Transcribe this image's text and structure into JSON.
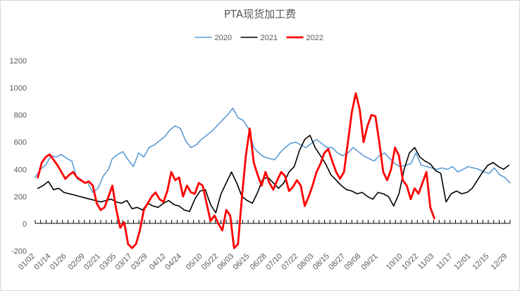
{
  "chart_data": {
    "type": "line",
    "title": "PTA现货加工费",
    "xlabel": "",
    "ylabel": "",
    "ylim": [
      -200,
      1200
    ],
    "y_ticks": [
      -200,
      0,
      200,
      400,
      600,
      800,
      1000,
      1200
    ],
    "grid": false,
    "legend_position": "top",
    "x_domain": [
      "01/02",
      "12/31"
    ],
    "x_ticks": [
      "01/02",
      "01/14",
      "01/26",
      "02/09",
      "02/21",
      "03/05",
      "03/17",
      "03/29",
      "04/12",
      "04/24",
      "05/10",
      "05/22",
      "06/03",
      "06/15",
      "06/28",
      "07/10",
      "07/22",
      "08/03",
      "08/15",
      "08/27",
      "09/08",
      "09/21",
      "10/10",
      "10/22",
      "11/03",
      "11/17",
      "12/01",
      "12/15",
      "12/29"
    ],
    "series": [
      {
        "name": "2020",
        "color": "#5b9bd5",
        "stroke_width": 1.6,
        "x": [
          "01/02",
          "01/06",
          "01/10",
          "01/14",
          "01/18",
          "01/22",
          "01/26",
          "01/30",
          "02/03",
          "02/07",
          "02/11",
          "02/15",
          "02/19",
          "02/23",
          "02/27",
          "03/02",
          "03/06",
          "03/10",
          "03/14",
          "03/18",
          "03/22",
          "03/26",
          "03/30",
          "04/03",
          "04/07",
          "04/11",
          "04/15",
          "04/19",
          "04/23",
          "04/27",
          "05/01",
          "05/05",
          "05/09",
          "05/13",
          "05/17",
          "05/21",
          "05/25",
          "05/29",
          "06/02",
          "06/06",
          "06/10",
          "06/14",
          "06/18",
          "06/22",
          "06/26",
          "06/30",
          "07/04",
          "07/08",
          "07/12",
          "07/16",
          "07/20",
          "07/24",
          "07/28",
          "08/01",
          "08/05",
          "08/09",
          "08/13",
          "08/17",
          "08/21",
          "08/25",
          "08/29",
          "09/02",
          "09/06",
          "09/10",
          "09/14",
          "09/18",
          "09/22",
          "09/26",
          "09/30",
          "10/04",
          "10/08",
          "10/12",
          "10/16",
          "10/20",
          "10/24",
          "10/28",
          "11/01",
          "11/05",
          "11/09",
          "11/13",
          "11/17",
          "11/21",
          "11/25",
          "11/29",
          "12/03",
          "12/07",
          "12/11",
          "12/15",
          "12/19",
          "12/23",
          "12/27",
          "12/31"
        ],
        "values": [
          340,
          400,
          430,
          500,
          490,
          510,
          480,
          460,
          330,
          310,
          300,
          230,
          260,
          350,
          400,
          480,
          510,
          530,
          470,
          420,
          520,
          490,
          560,
          580,
          610,
          640,
          690,
          720,
          700,
          610,
          560,
          580,
          620,
          650,
          680,
          720,
          760,
          800,
          850,
          780,
          760,
          700,
          560,
          520,
          490,
          480,
          470,
          520,
          560,
          590,
          600,
          580,
          560,
          590,
          620,
          590,
          560,
          560,
          520,
          500,
          520,
          560,
          530,
          500,
          480,
          460,
          500,
          520,
          480,
          440,
          420,
          430,
          440,
          520,
          430,
          420,
          410,
          400,
          410,
          400,
          420,
          380,
          400,
          420,
          410,
          400,
          380,
          370,
          410,
          360,
          340,
          300
        ]
      },
      {
        "name": "2021",
        "color": "#000000",
        "stroke_width": 1.6,
        "x": [
          "01/04",
          "01/08",
          "01/12",
          "01/16",
          "01/20",
          "01/24",
          "01/28",
          "02/01",
          "02/05",
          "02/09",
          "02/13",
          "02/17",
          "02/21",
          "02/25",
          "03/01",
          "03/05",
          "03/09",
          "03/13",
          "03/17",
          "03/21",
          "03/25",
          "03/29",
          "04/02",
          "04/06",
          "04/10",
          "04/14",
          "04/18",
          "04/22",
          "04/26",
          "04/30",
          "05/04",
          "05/08",
          "05/12",
          "05/16",
          "05/20",
          "05/24",
          "05/28",
          "06/01",
          "06/05",
          "06/09",
          "06/13",
          "06/17",
          "06/21",
          "06/25",
          "06/29",
          "07/03",
          "07/07",
          "07/11",
          "07/15",
          "07/19",
          "07/23",
          "07/27",
          "07/31",
          "08/04",
          "08/08",
          "08/12",
          "08/16",
          "08/20",
          "08/24",
          "08/28",
          "09/01",
          "09/05",
          "09/09",
          "09/13",
          "09/17",
          "09/21",
          "09/25",
          "09/29",
          "10/03",
          "10/07",
          "10/11",
          "10/15",
          "10/19",
          "10/23",
          "10/27",
          "10/31",
          "11/04",
          "11/08",
          "11/12",
          "11/16",
          "11/20",
          "11/24",
          "11/28",
          "12/02",
          "12/06",
          "12/10",
          "12/14",
          "12/18",
          "12/22",
          "12/26",
          "12/30"
        ],
        "values": [
          260,
          280,
          310,
          250,
          260,
          230,
          220,
          210,
          200,
          190,
          180,
          170,
          160,
          170,
          180,
          160,
          150,
          170,
          110,
          120,
          100,
          150,
          130,
          120,
          150,
          170,
          140,
          130,
          100,
          90,
          180,
          240,
          250,
          140,
          80,
          220,
          300,
          380,
          300,
          200,
          170,
          150,
          230,
          330,
          340,
          300,
          260,
          300,
          380,
          420,
          540,
          620,
          650,
          560,
          500,
          440,
          360,
          320,
          280,
          250,
          240,
          220,
          230,
          200,
          180,
          230,
          220,
          200,
          130,
          220,
          400,
          520,
          560,
          490,
          460,
          440,
          390,
          370,
          160,
          220,
          240,
          220,
          230,
          260,
          320,
          380,
          430,
          450,
          420,
          400,
          430
        ]
      },
      {
        "name": "2022",
        "color": "#ff0000",
        "stroke_width": 2.8,
        "x": [
          "01/04",
          "01/07",
          "01/10",
          "01/13",
          "01/16",
          "01/19",
          "01/22",
          "01/25",
          "01/28",
          "01/31",
          "02/03",
          "02/06",
          "02/09",
          "02/12",
          "02/15",
          "02/18",
          "02/21",
          "02/24",
          "02/27",
          "03/02",
          "03/05",
          "03/08",
          "03/11",
          "03/14",
          "03/17",
          "03/20",
          "03/23",
          "03/26",
          "03/29",
          "04/01",
          "04/04",
          "04/07",
          "04/10",
          "04/13",
          "04/16",
          "04/19",
          "04/22",
          "04/25",
          "04/28",
          "05/01",
          "05/04",
          "05/07",
          "05/10",
          "05/13",
          "05/16",
          "05/19",
          "05/22",
          "05/25",
          "05/28",
          "05/31",
          "06/03",
          "06/06",
          "06/09",
          "06/12",
          "06/15",
          "06/18",
          "06/21",
          "06/24",
          "06/27",
          "06/30",
          "07/03",
          "07/06",
          "07/09",
          "07/12",
          "07/15",
          "07/18",
          "07/21",
          "07/24",
          "07/27",
          "07/30",
          "08/02",
          "08/05",
          "08/08",
          "08/11",
          "08/14",
          "08/17",
          "08/20",
          "08/23",
          "08/26",
          "08/29",
          "09/01",
          "09/04",
          "09/07",
          "09/10",
          "09/13",
          "09/16",
          "09/19",
          "09/22",
          "09/25",
          "09/28",
          "10/01",
          "10/04",
          "10/07",
          "10/10",
          "10/13",
          "10/16",
          "10/19",
          "10/22",
          "10/25",
          "10/28",
          "10/31",
          "11/03"
        ],
        "values": [
          340,
          450,
          490,
          510,
          470,
          430,
          380,
          330,
          360,
          380,
          340,
          320,
          300,
          310,
          280,
          150,
          100,
          120,
          200,
          280,
          100,
          -30,
          10,
          -150,
          -180,
          -150,
          -50,
          100,
          150,
          200,
          230,
          180,
          160,
          240,
          380,
          320,
          340,
          200,
          280,
          230,
          220,
          300,
          280,
          150,
          20,
          60,
          0,
          -50,
          100,
          60,
          -180,
          -150,
          200,
          500,
          700,
          450,
          360,
          280,
          380,
          300,
          250,
          320,
          380,
          350,
          240,
          270,
          320,
          280,
          130,
          200,
          280,
          380,
          440,
          520,
          550,
          460,
          380,
          330,
          380,
          600,
          820,
          960,
          840,
          600,
          720,
          800,
          790,
          600,
          380,
          320,
          400,
          560,
          500,
          320,
          280,
          180,
          260,
          220,
          300,
          380,
          120,
          40
        ]
      }
    ]
  }
}
